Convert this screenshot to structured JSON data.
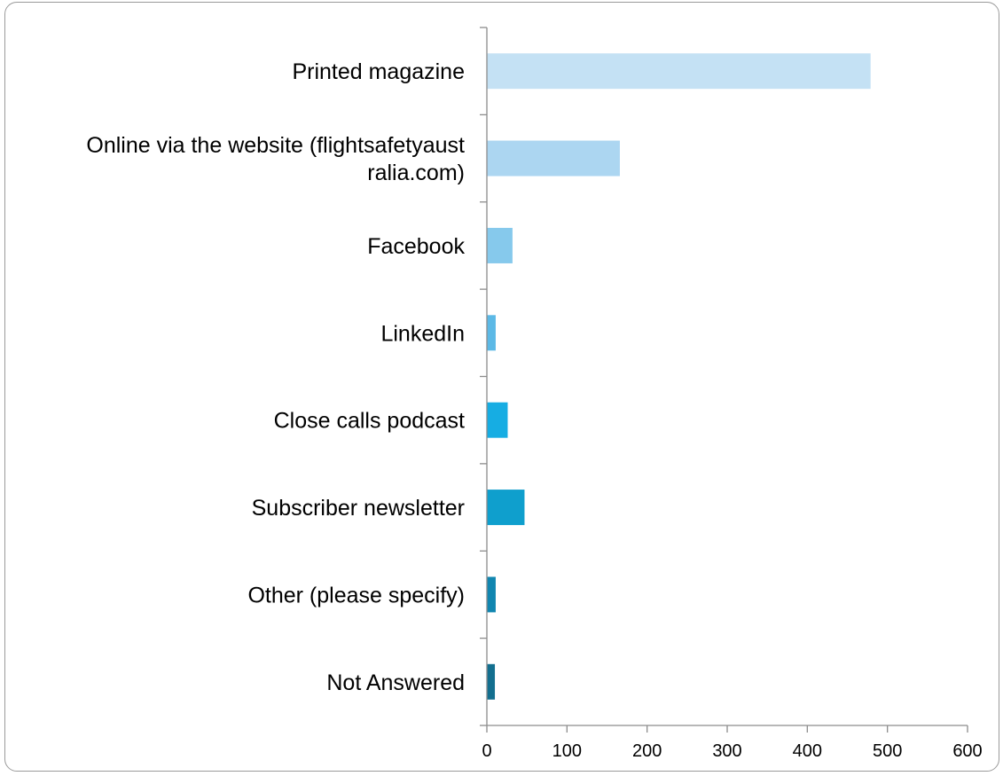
{
  "chart_data": {
    "type": "bar",
    "orientation": "horizontal",
    "categories": [
      "Printed magazine",
      "Online via the website (flightsafetyaustralia.com)",
      "Facebook",
      "LinkedIn",
      "Close calls podcast",
      "Subscriber newsletter",
      "Other (please specify)",
      "Not Answered"
    ],
    "category_label_lines": [
      [
        "Printed magazine"
      ],
      [
        "Online via the website (flightsafetyaust",
        "ralia.com)"
      ],
      [
        "Facebook"
      ],
      [
        "LinkedIn"
      ],
      [
        "Close calls podcast"
      ],
      [
        "Subscriber newsletter"
      ],
      [
        "Other (please specify)"
      ],
      [
        "Not Answered"
      ]
    ],
    "values": [
      479,
      166,
      32,
      11,
      26,
      47,
      11,
      10
    ],
    "bar_colors": [
      "#c4e1f4",
      "#acd6f1",
      "#86c9ec",
      "#5cb9e6",
      "#16ade3",
      "#0f9fcd",
      "#1186b0",
      "#136f8f"
    ],
    "xlim": [
      0,
      600
    ],
    "xticks": [
      0,
      100,
      200,
      300,
      400,
      500,
      600
    ],
    "grid": false,
    "legend": "none",
    "title": "",
    "xlabel": "",
    "ylabel": ""
  }
}
